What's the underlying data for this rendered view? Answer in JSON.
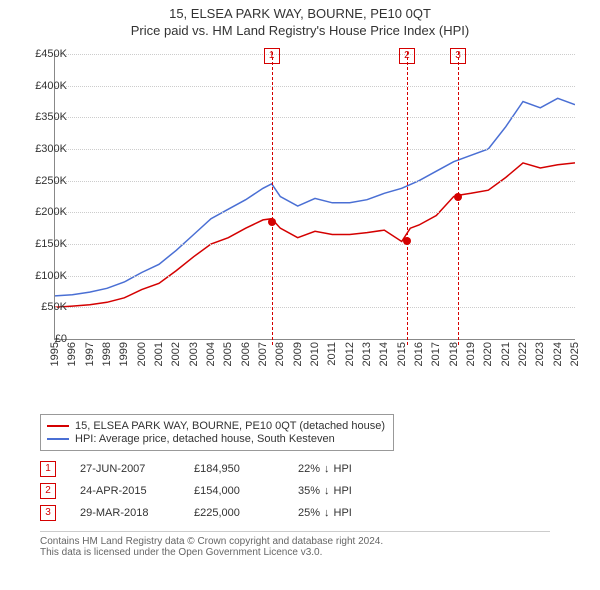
{
  "title_line1": "15, ELSEA PARK WAY, BOURNE, PE10 0QT",
  "title_line2": "Price paid vs. HM Land Registry's House Price Index (HPI)",
  "chart": {
    "type": "line",
    "background_color": "#ffffff",
    "grid_color": "#cccccc",
    "axis_color": "#888888",
    "label_fontsize": 11,
    "y": {
      "min": 0,
      "max": 450000,
      "step": 50000,
      "labels": [
        "£0",
        "£50K",
        "£100K",
        "£150K",
        "£200K",
        "£250K",
        "£300K",
        "£350K",
        "£400K",
        "£450K"
      ]
    },
    "x": {
      "min": 1995,
      "max": 2025,
      "labels": [
        "1995",
        "1996",
        "1997",
        "1998",
        "1999",
        "2000",
        "2001",
        "2002",
        "2003",
        "2004",
        "2005",
        "2006",
        "2007",
        "2008",
        "2009",
        "2010",
        "2011",
        "2012",
        "2013",
        "2014",
        "2015",
        "2016",
        "2017",
        "2018",
        "2019",
        "2020",
        "2021",
        "2022",
        "2023",
        "2024",
        "2025"
      ]
    },
    "series": [
      {
        "name": "price_paid",
        "color": "#d40000",
        "line_width": 1.5,
        "data": [
          [
            1995,
            50000
          ],
          [
            1996,
            52000
          ],
          [
            1997,
            54000
          ],
          [
            1998,
            58000
          ],
          [
            1999,
            65000
          ],
          [
            2000,
            78000
          ],
          [
            2001,
            88000
          ],
          [
            2002,
            108000
          ],
          [
            2003,
            130000
          ],
          [
            2004,
            150000
          ],
          [
            2005,
            160000
          ],
          [
            2006,
            175000
          ],
          [
            2007,
            188000
          ],
          [
            2007.5,
            190000
          ],
          [
            2008,
            175000
          ],
          [
            2009,
            160000
          ],
          [
            2010,
            170000
          ],
          [
            2011,
            165000
          ],
          [
            2012,
            165000
          ],
          [
            2013,
            168000
          ],
          [
            2014,
            172000
          ],
          [
            2015,
            154000
          ],
          [
            2015.5,
            175000
          ],
          [
            2016,
            180000
          ],
          [
            2017,
            195000
          ],
          [
            2018,
            225000
          ],
          [
            2018.5,
            228000
          ],
          [
            2019,
            230000
          ],
          [
            2020,
            235000
          ],
          [
            2021,
            255000
          ],
          [
            2022,
            278000
          ],
          [
            2023,
            270000
          ],
          [
            2024,
            275000
          ],
          [
            2025,
            278000
          ]
        ]
      },
      {
        "name": "hpi",
        "color": "#4a6fd4",
        "line_width": 1.5,
        "data": [
          [
            1995,
            68000
          ],
          [
            1996,
            70000
          ],
          [
            1997,
            74000
          ],
          [
            1998,
            80000
          ],
          [
            1999,
            90000
          ],
          [
            2000,
            105000
          ],
          [
            2001,
            118000
          ],
          [
            2002,
            140000
          ],
          [
            2003,
            165000
          ],
          [
            2004,
            190000
          ],
          [
            2005,
            205000
          ],
          [
            2006,
            220000
          ],
          [
            2007,
            238000
          ],
          [
            2007.5,
            245000
          ],
          [
            2008,
            225000
          ],
          [
            2009,
            210000
          ],
          [
            2010,
            222000
          ],
          [
            2011,
            215000
          ],
          [
            2012,
            215000
          ],
          [
            2013,
            220000
          ],
          [
            2014,
            230000
          ],
          [
            2015,
            238000
          ],
          [
            2016,
            250000
          ],
          [
            2017,
            265000
          ],
          [
            2018,
            280000
          ],
          [
            2019,
            290000
          ],
          [
            2020,
            300000
          ],
          [
            2021,
            335000
          ],
          [
            2022,
            375000
          ],
          [
            2023,
            365000
          ],
          [
            2024,
            380000
          ],
          [
            2025,
            370000
          ]
        ]
      }
    ],
    "markers": [
      {
        "n": "1",
        "year": 2007.5,
        "price": 184950,
        "color": "#d40000"
      },
      {
        "n": "2",
        "year": 2015.3,
        "price": 154000,
        "color": "#d40000"
      },
      {
        "n": "3",
        "year": 2018.25,
        "price": 225000,
        "color": "#d40000"
      }
    ]
  },
  "legend": {
    "items": [
      {
        "color": "#d40000",
        "label": "15, ELSEA PARK WAY, BOURNE, PE10 0QT (detached house)"
      },
      {
        "color": "#4a6fd4",
        "label": "HPI: Average price, detached house, South Kesteven"
      }
    ]
  },
  "sales": [
    {
      "n": "1",
      "color": "#d40000",
      "date": "27-JUN-2007",
      "price": "£184,950",
      "diff_pct": "22%",
      "diff_dir": "↓",
      "diff_label": "HPI"
    },
    {
      "n": "2",
      "color": "#d40000",
      "date": "24-APR-2015",
      "price": "£154,000",
      "diff_pct": "35%",
      "diff_dir": "↓",
      "diff_label": "HPI"
    },
    {
      "n": "3",
      "color": "#d40000",
      "date": "29-MAR-2018",
      "price": "£225,000",
      "diff_pct": "25%",
      "diff_dir": "↓",
      "diff_label": "HPI"
    }
  ],
  "footer_line1": "Contains HM Land Registry data © Crown copyright and database right 2024.",
  "footer_line2": "This data is licensed under the Open Government Licence v3.0."
}
